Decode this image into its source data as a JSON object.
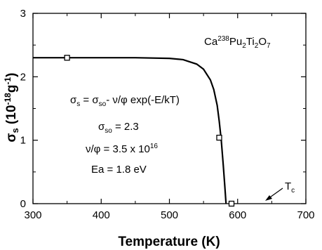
{
  "chart_data": {
    "type": "line",
    "xlabel": "Temperature (K)",
    "ylabel": {
      "symbol": "σ",
      "subscript": "s",
      "units_open": "(10",
      "units_exp": "-18",
      "units_mid": "g",
      "units_exp2": "-1",
      "units_close": ")"
    },
    "xlim": [
      300,
      700
    ],
    "ylim": [
      0,
      3
    ],
    "x_ticks": [
      "300",
      "400",
      "500",
      "600",
      "700"
    ],
    "y_ticks": [
      "0",
      "1",
      "2",
      "3"
    ],
    "grid": false,
    "series": [
      {
        "curve": [
          [
            300,
            2.3
          ],
          [
            400,
            2.3
          ],
          [
            450,
            2.3
          ],
          [
            500,
            2.29
          ],
          [
            520,
            2.27
          ],
          [
            540,
            2.2
          ],
          [
            550,
            2.12
          ],
          [
            560,
            1.95
          ],
          [
            565,
            1.8
          ],
          [
            570,
            1.55
          ],
          [
            573,
            1.3
          ],
          [
            576,
            1.0
          ],
          [
            579,
            0.6
          ],
          [
            581,
            0.3
          ],
          [
            583,
            0.0
          ]
        ],
        "markers": [
          [
            350,
            2.3
          ],
          [
            573,
            1.04
          ],
          [
            591,
            0.0
          ]
        ]
      }
    ],
    "annotations": {
      "compound": {
        "a": "Ca",
        "sup1": "238",
        "b": "Pu",
        "sub1": "2",
        "c": "Ti",
        "sub2": "2",
        "d": "O",
        "sub3": "7"
      },
      "equation": {
        "lhs": "σ",
        "lhs_sub": "s",
        "eq": " = σ",
        "so_sub": "so",
        "rest": "- ν/φ exp(-E/kT)"
      },
      "sigma_so": {
        "sym": "σ",
        "sub": "so",
        "rest": " = 2.3"
      },
      "nu_phi": {
        "text": "ν/φ = 3.5 x 10",
        "exp": "16"
      },
      "ea": "Ea = 1.8 eV",
      "tc": {
        "t": "T",
        "sub": "c"
      }
    }
  }
}
